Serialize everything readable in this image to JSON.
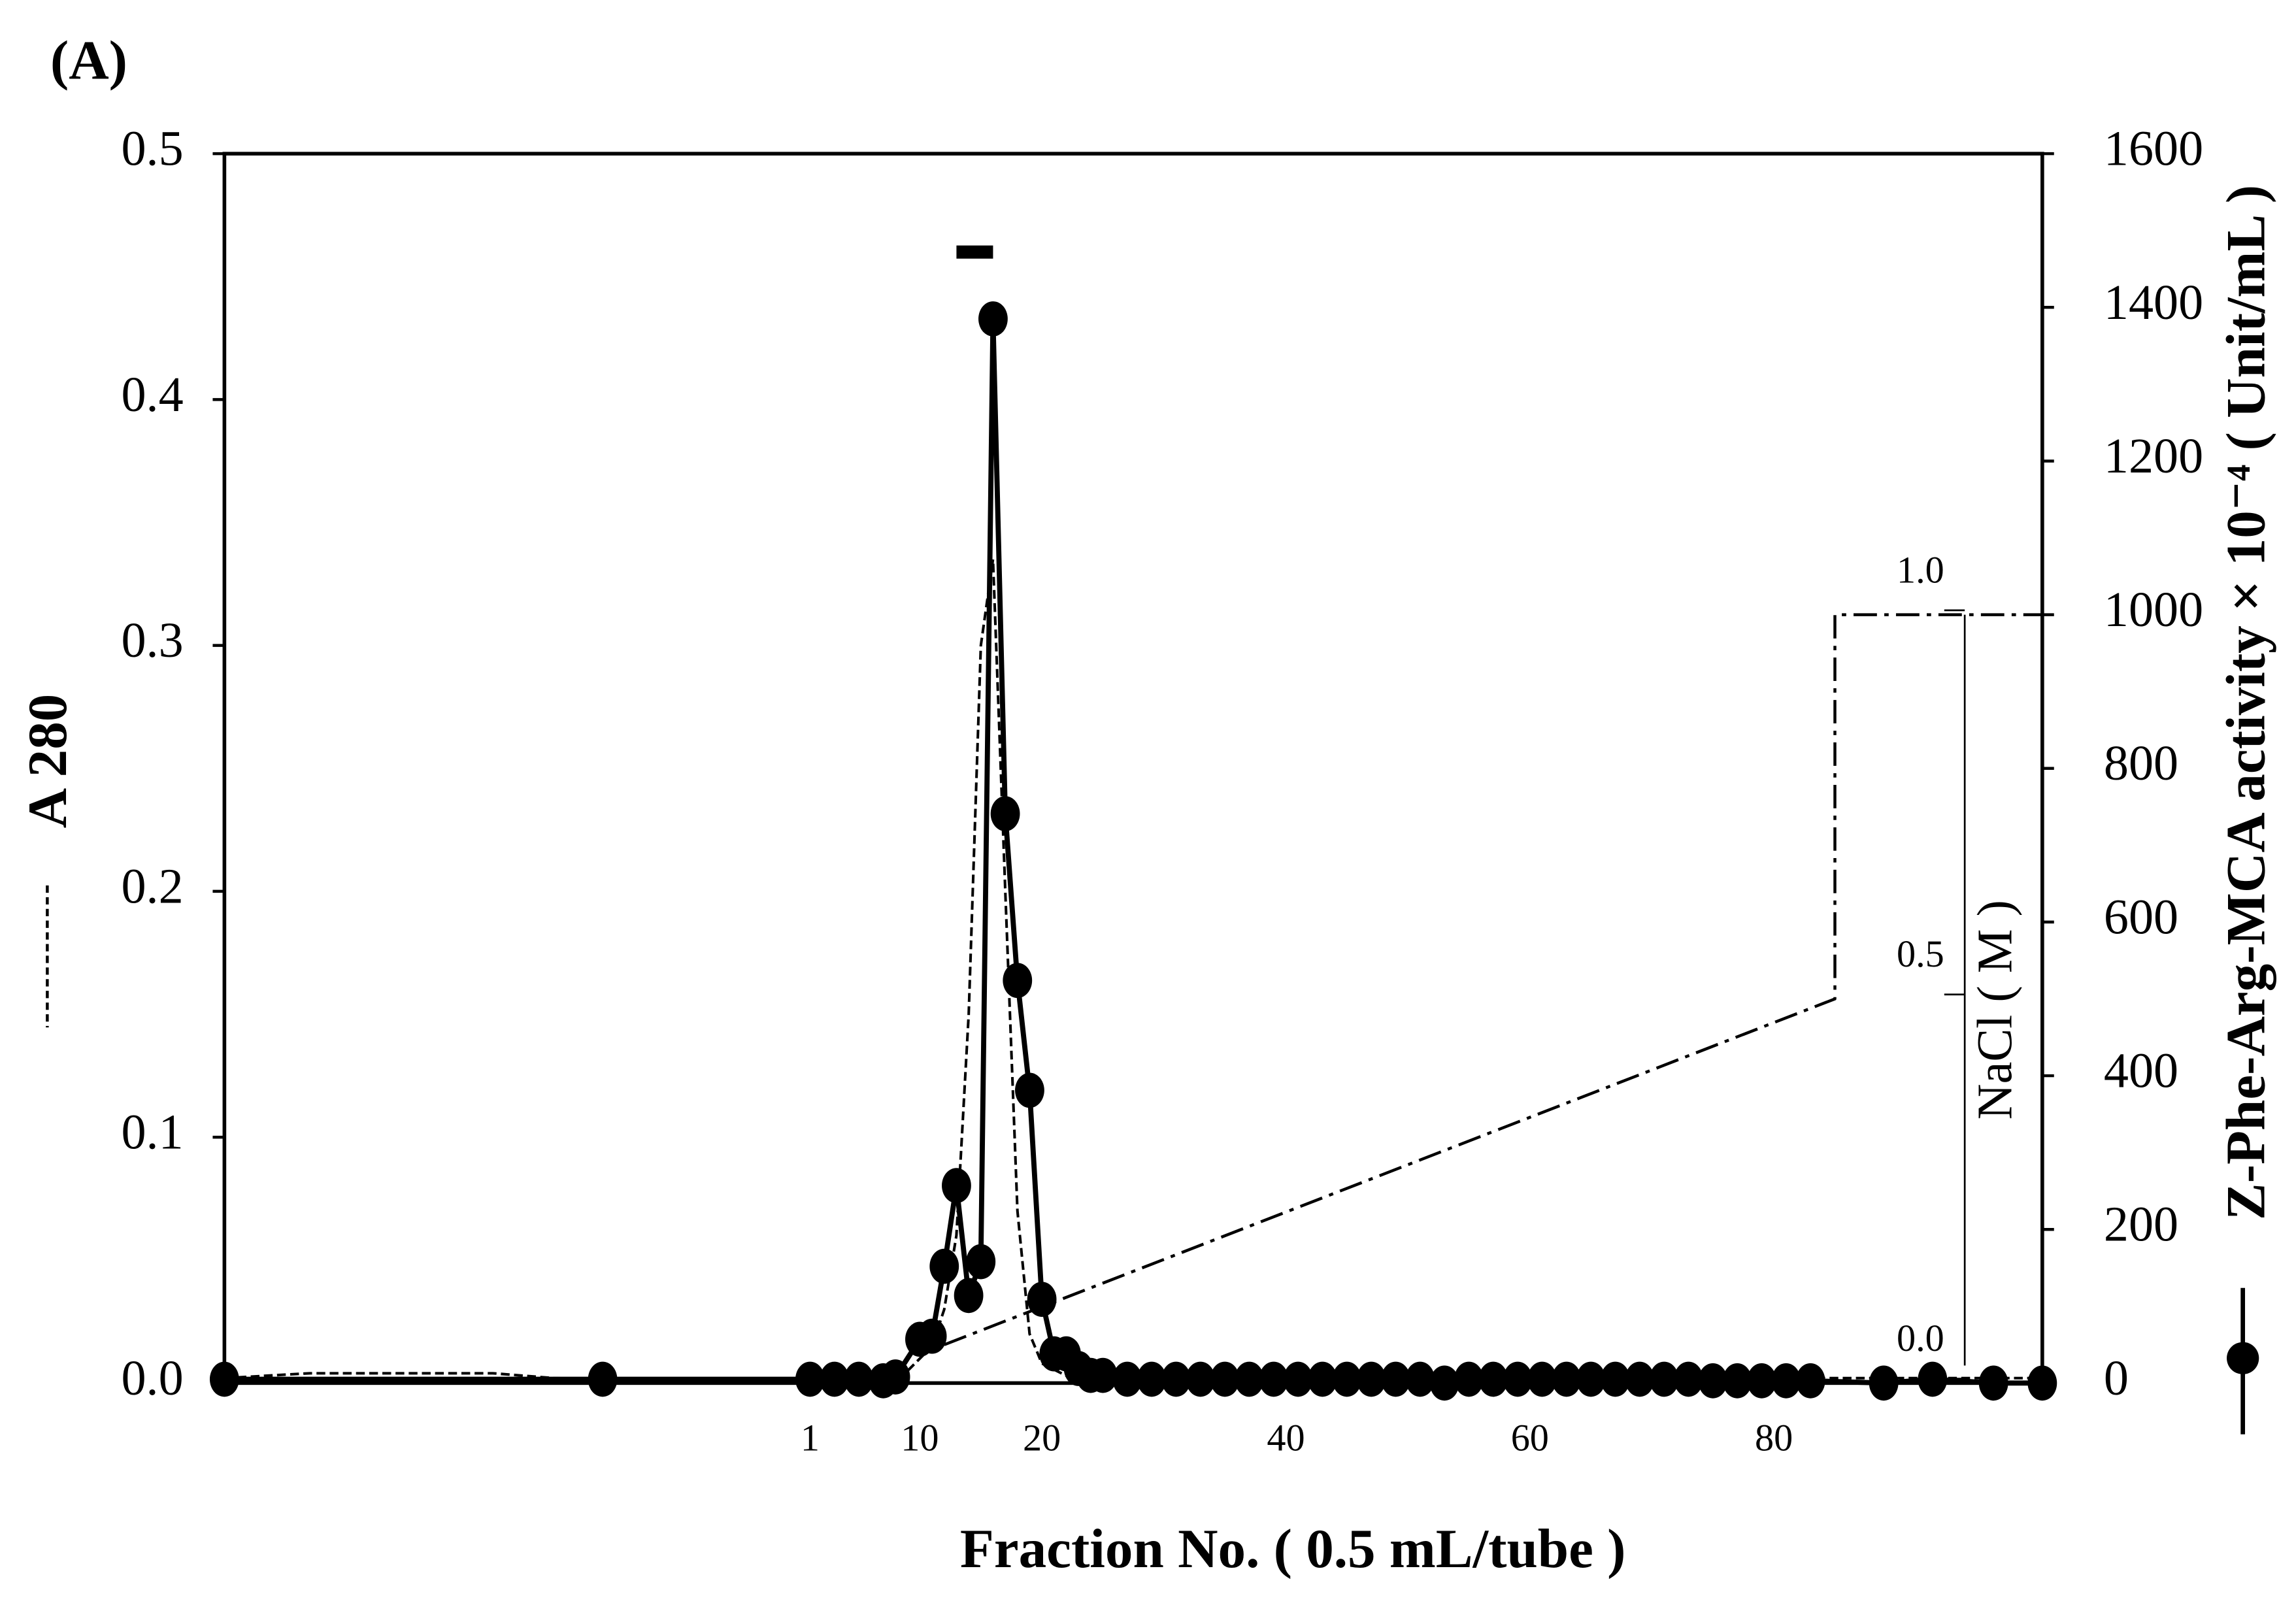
{
  "chart_data": {
    "type": "line",
    "panel_label": "(A)",
    "xlabel": "Fraction No. ( 0.5 mL/tube )",
    "ylabel": "A 280",
    "y2label": "Z-Phe-Arg-MCA activity × 10⁻⁴ ( Unit/mL )",
    "y3label": "NaCl ( M )",
    "xlim": [
      -47,
      102
    ],
    "xticks": [
      1,
      10,
      20,
      40,
      60,
      80
    ],
    "ylim": [
      0,
      0.5
    ],
    "yticks": [
      {
        "value": 0,
        "label": "0.0"
      },
      0.1,
      0.2,
      0.3,
      0.4,
      0.5
    ],
    "y2lim": [
      0,
      1600
    ],
    "y2ticks": [
      0,
      200,
      400,
      600,
      800,
      1000,
      1200,
      1400,
      1600
    ],
    "y3lim": [
      0,
      1
    ],
    "y3ticks": [
      {
        "value": 0,
        "label": "0.0"
      },
      0.5,
      {
        "value": 1,
        "label": "1.0"
      }
    ],
    "pool": {
      "x": [
        13,
        16
      ],
      "y": 0.46
    },
    "series": [
      {
        "style": "dashed",
        "color": "#000000",
        "axis": "y",
        "x": [
          -47,
          -40,
          -25,
          -20,
          -10,
          1,
          7,
          9,
          11,
          12,
          13,
          14,
          15,
          16,
          17,
          18,
          19,
          20,
          22,
          30,
          60,
          102
        ],
        "values": [
          0.002,
          0.004,
          0.004,
          0.002,
          0.001,
          0.001,
          0.002,
          0.005,
          0.015,
          0.03,
          0.06,
          0.15,
          0.3,
          0.335,
          0.2,
          0.07,
          0.02,
          0.008,
          0.003,
          0.002,
          0.002,
          0.002
        ]
      },
      {
        "style": "solid",
        "markers": true,
        "color": "#000000",
        "axis": "y2",
        "x": [
          -47,
          -16,
          1,
          3,
          5,
          7,
          8,
          10,
          11,
          12,
          13,
          14,
          15,
          16,
          17,
          18,
          19,
          20,
          21,
          22,
          23,
          24,
          25,
          27,
          29,
          31,
          33,
          35,
          37,
          39,
          41,
          43,
          45,
          47,
          49,
          51,
          53,
          55,
          57,
          59,
          61,
          63,
          65,
          67,
          69,
          71,
          73,
          75,
          77,
          79,
          81,
          83,
          89,
          93,
          98,
          102
        ],
        "values": [
          5,
          5,
          5,
          5,
          5,
          3,
          8,
          57,
          61,
          152,
          257,
          114,
          158,
          1385,
          741,
          524,
          381,
          109,
          38,
          38,
          19,
          10,
          10,
          5,
          5,
          5,
          5,
          5,
          5,
          5,
          5,
          5,
          5,
          5,
          5,
          5,
          0,
          5,
          5,
          5,
          5,
          5,
          5,
          5,
          5,
          5,
          5,
          3,
          3,
          3,
          3,
          3,
          0,
          5,
          0,
          0
        ]
      },
      {
        "style": "dashdot",
        "color": "#000000",
        "axis": "y3",
        "x": [
          12,
          85,
          85,
          102
        ],
        "values": [
          0.05,
          0.5,
          1,
          1
        ]
      }
    ]
  }
}
